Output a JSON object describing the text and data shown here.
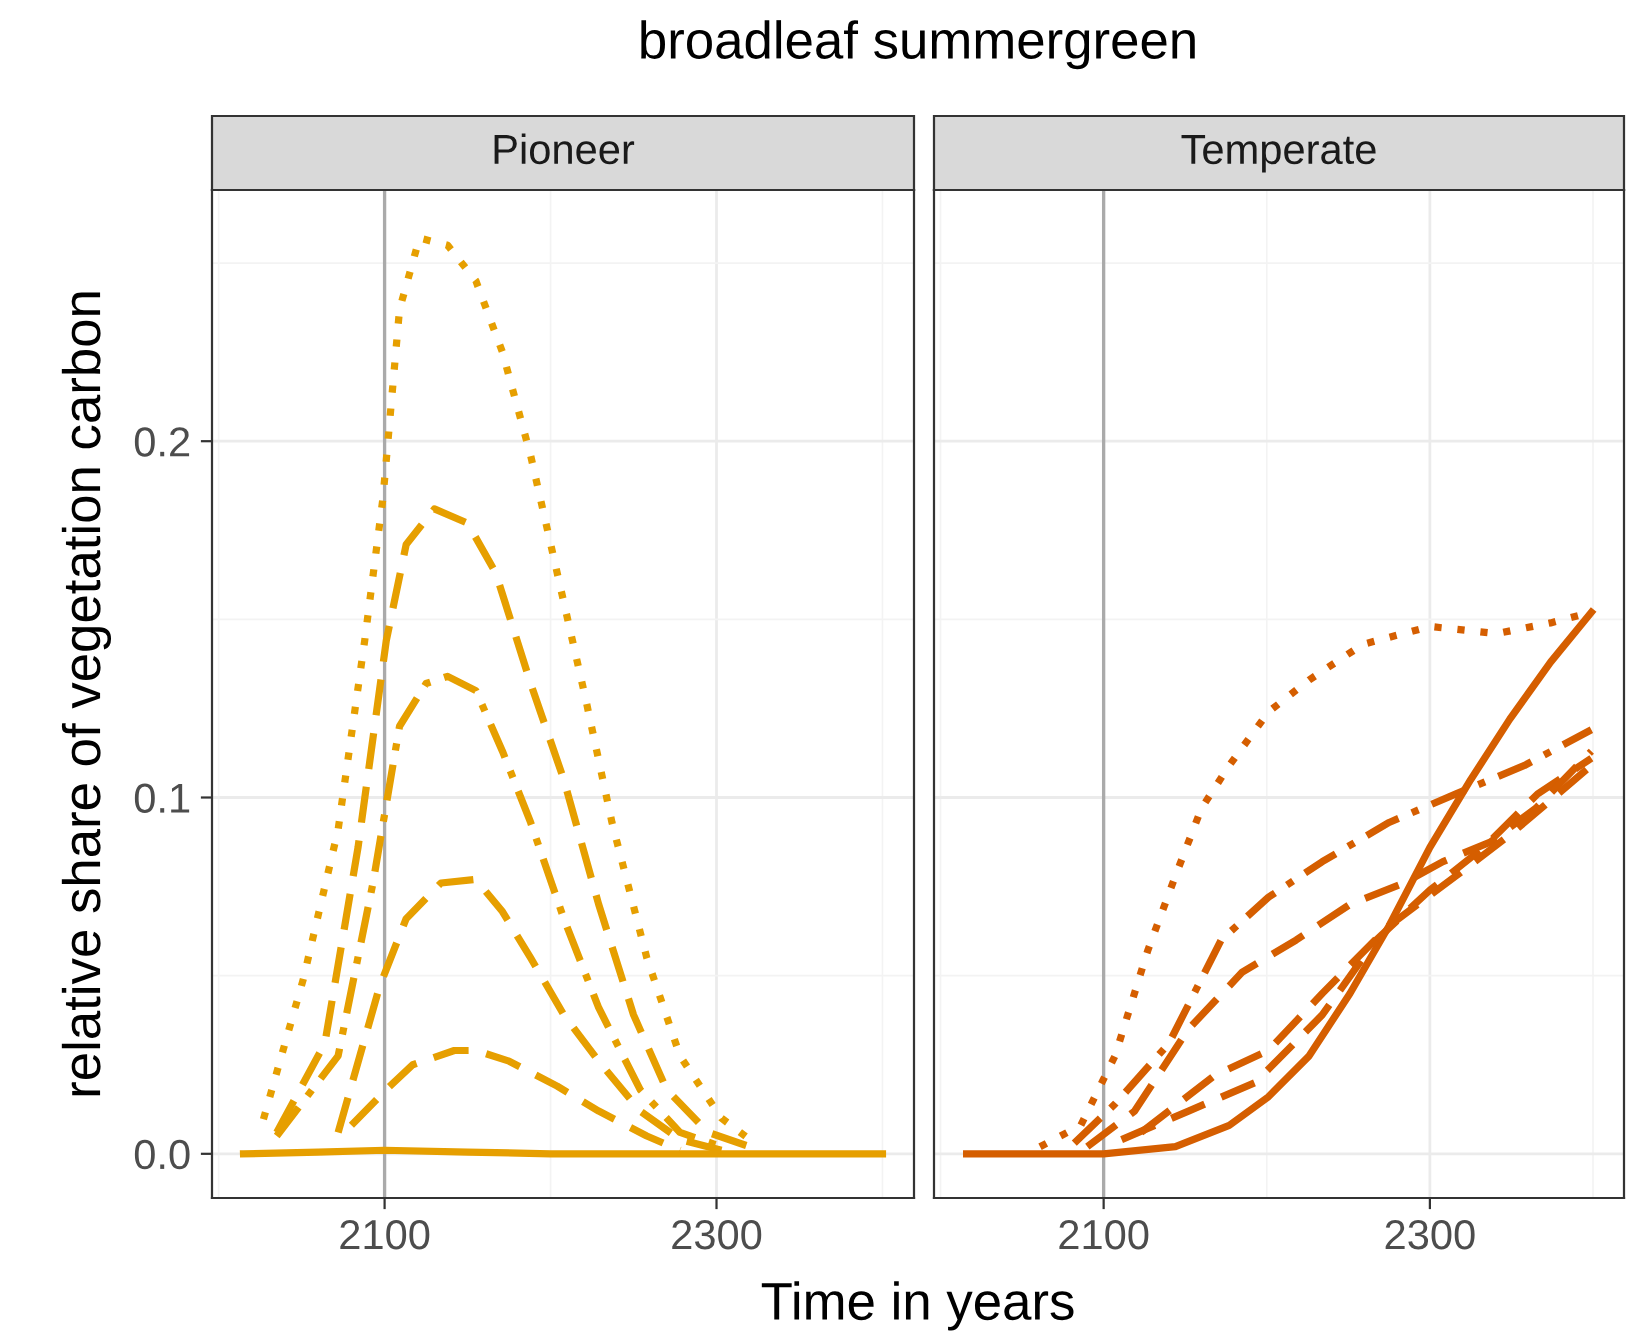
{
  "chart_data": [
    {
      "type": "line",
      "title": "Pioneer",
      "xlabel": "Time in years",
      "ylabel": "relative share of vegetation carbon",
      "annotations": [
        "broadleaf summergreen"
      ],
      "xlim": [
        1996,
        2419
      ],
      "ylim": [
        -0.0124,
        0.2705
      ],
      "xticks": [
        {
          "value": 2000,
          "label": null
        },
        2100,
        {
          "value": 2200,
          "label": null
        },
        2300,
        {
          "value": 2400,
          "label": null
        }
      ],
      "yticks": [
        {
          "value": 0,
          "label": "0.0"
        },
        {
          "value": 0.05,
          "label": null
        },
        {
          "value": 0.1,
          "label": "0.1"
        },
        {
          "value": 0.15,
          "label": null
        },
        {
          "value": 0.2,
          "label": "0.2"
        },
        {
          "value": 0.25,
          "label": null
        }
      ],
      "grid": true,
      "legend": false,
      "ref_lines": [
        {
          "axis": "x",
          "value": 2100,
          "label": null,
          "color": "#aaaaaa"
        }
      ],
      "series": [
        {
          "color": "#e69f00",
          "line_style": "solid",
          "x": [
            2015,
            2060,
            2100,
            2150,
            2200,
            2250,
            2300,
            2350,
            2400
          ],
          "values": [
            0.0,
            0.0005,
            0.001,
            0.0005,
            0.0,
            0.0,
            0.0,
            0.0,
            0.0
          ]
        },
        {
          "color": "#e69f00",
          "line_style": "dashed",
          "x": [
            2080,
            2101,
            2117,
            2142,
            2155,
            2175,
            2204,
            2229,
            2258,
            2278
          ],
          "values": [
            0.008,
            0.018,
            0.025,
            0.029,
            0.029,
            0.026,
            0.019,
            0.012,
            0.005,
            0.001
          ]
        },
        {
          "color": "#e69f00",
          "line_style": "dashed",
          "x": [
            2072,
            2097,
            2113,
            2134,
            2155,
            2171,
            2188,
            2208,
            2229,
            2254,
            2278,
            2303
          ],
          "values": [
            0.006,
            0.047,
            0.066,
            0.076,
            0.077,
            0.068,
            0.055,
            0.039,
            0.026,
            0.012,
            0.004,
            0.001
          ]
        },
        {
          "color": "#e69f00",
          "line_style": "dashdot",
          "x": [
            2035,
            2072,
            2093,
            2109,
            2125,
            2138,
            2155,
            2171,
            2188,
            2208,
            2229,
            2254,
            2278,
            2303
          ],
          "values": [
            0.005,
            0.0275,
            0.076,
            0.12,
            0.132,
            0.134,
            0.13,
            0.113,
            0.093,
            0.066,
            0.041,
            0.018,
            0.006,
            0.002
          ]
        },
        {
          "color": "#e69f00",
          "line_style": "dashed",
          "x": [
            2035,
            2064,
            2084,
            2101,
            2113,
            2130,
            2150,
            2167,
            2188,
            2208,
            2229,
            2250,
            2270,
            2295,
            2320
          ],
          "values": [
            0.006,
            0.031,
            0.086,
            0.144,
            0.171,
            0.181,
            0.177,
            0.163,
            0.132,
            0.105,
            0.07,
            0.039,
            0.018,
            0.006,
            0.002
          ]
        },
        {
          "color": "#e69f00",
          "line_style": "dotted",
          "x": [
            2027,
            2051,
            2072,
            2088,
            2099,
            2109,
            2121,
            2138,
            2155,
            2171,
            2188,
            2204,
            2221,
            2237,
            2258,
            2278,
            2303,
            2320
          ],
          "values": [
            0.0097,
            0.049,
            0.091,
            0.144,
            0.184,
            0.237,
            0.257,
            0.255,
            0.245,
            0.225,
            0.196,
            0.163,
            0.128,
            0.093,
            0.055,
            0.0275,
            0.01,
            0.004
          ]
        }
      ]
    },
    {
      "type": "line",
      "title": "Temperate",
      "tick_labels": "x",
      "xlim": [
        1996,
        2419
      ],
      "ylim": [
        -0.0124,
        0.2705
      ],
      "xticks": [
        {
          "value": 2000,
          "label": null
        },
        2100,
        {
          "value": 2200,
          "label": null
        },
        2300,
        {
          "value": 2400,
          "label": null
        }
      ],
      "yticks": [
        0,
        {
          "value": 0.05,
          "label": null
        },
        0.1,
        {
          "value": 0.15,
          "label": null
        },
        0.2,
        {
          "value": 0.25,
          "label": null
        }
      ],
      "grid": true,
      "legend": false,
      "ref_lines": [
        {
          "axis": "x",
          "value": 2100,
          "label": null,
          "color": "#aaaaaa"
        }
      ],
      "series": [
        {
          "color": "#d55e00",
          "line_style": "solid",
          "x": [
            2016,
            2100,
            2144,
            2177,
            2201,
            2226,
            2251,
            2275,
            2300,
            2325,
            2349,
            2374,
            2399
          ],
          "values": [
            0.0,
            0.0,
            0.002,
            0.008,
            0.016,
            0.0275,
            0.045,
            0.064,
            0.086,
            0.105,
            0.122,
            0.138,
            0.152
          ]
        },
        {
          "color": "#d55e00",
          "line_style": "dashed",
          "x": [
            2111,
            2152,
            2193,
            2234,
            2267,
            2300,
            2333,
            2366,
            2399
          ],
          "values": [
            0.004,
            0.012,
            0.02,
            0.039,
            0.06,
            0.074,
            0.086,
            0.101,
            0.111
          ]
        },
        {
          "color": "#d55e00",
          "line_style": "dashed",
          "x": [
            2090,
            2119,
            2152,
            2185,
            2218,
            2251,
            2284,
            2308,
            2337,
            2365,
            2399
          ],
          "values": [
            0.002,
            0.012,
            0.035,
            0.051,
            0.06,
            0.07,
            0.076,
            0.082,
            0.0875,
            0.097,
            0.113
          ]
        },
        {
          "color": "#d55e00",
          "line_style": "dashdot",
          "x": [
            2082,
            2107,
            2140,
            2172,
            2201,
            2234,
            2275,
            2316,
            2358,
            2399
          ],
          "values": [
            0.003,
            0.014,
            0.031,
            0.06,
            0.072,
            0.082,
            0.093,
            0.101,
            0.109,
            0.119
          ]
        },
        {
          "color": "#d55e00",
          "line_style": "dashed",
          "x": [
            2123,
            2168,
            2201,
            2234,
            2275,
            2316,
            2349,
            2399
          ],
          "values": [
            0.006,
            0.022,
            0.029,
            0.045,
            0.064,
            0.078,
            0.0895,
            0.109
          ]
        },
        {
          "color": "#d55e00",
          "line_style": "dotted",
          "x": [
            2061,
            2086,
            2107,
            2127,
            2144,
            2160,
            2177,
            2201,
            2226,
            2259,
            2300,
            2341,
            2374,
            2399
          ],
          "values": [
            0.002,
            0.008,
            0.0275,
            0.057,
            0.078,
            0.097,
            0.109,
            0.124,
            0.133,
            0.143,
            0.148,
            0.146,
            0.149,
            0.152
          ]
        }
      ]
    }
  ]
}
